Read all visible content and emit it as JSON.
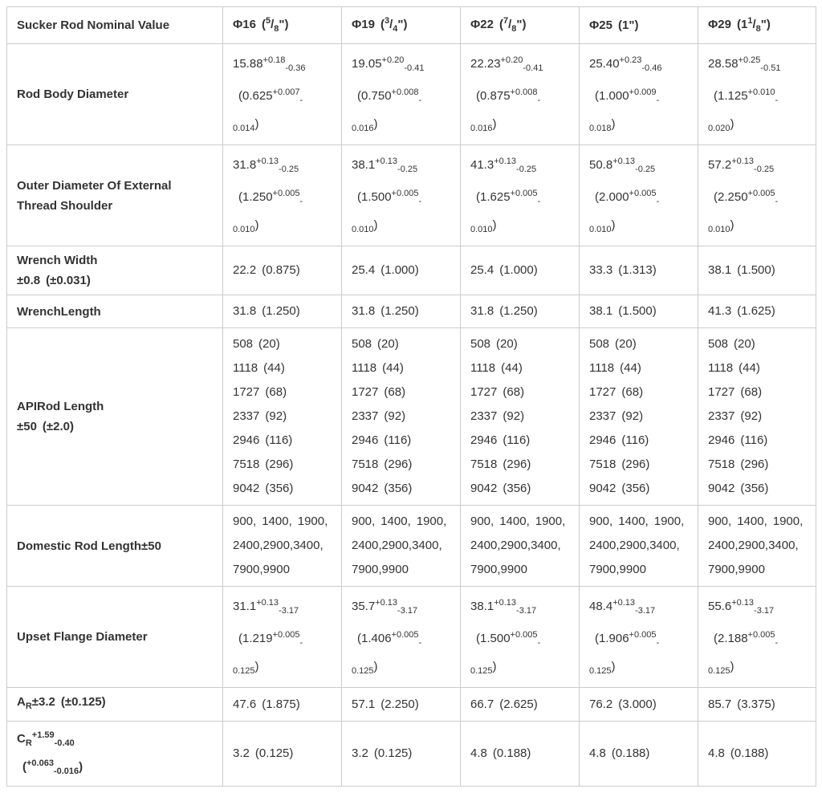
{
  "colors": {
    "border-color": "#cccccc",
    "text-color": "#333333",
    "bg-color": "#ffffff"
  },
  "table": {
    "columns": [
      "Sucker Rod Nominal Value",
      "Φ16（^{5}/_{8}\"）",
      "Φ19（^{3}/_{4}\"）",
      "Φ22（^{7}/_{8}\"）",
      "Φ25（1\"）",
      "Φ29（1^{1}/_{8}\"）"
    ],
    "rows": [
      {
        "label": "Rod Body Diameter",
        "cells": [
          "15.88^{+0.18}_{-0.36}\n（0.625^{+0.007}_{-0.014}）",
          "19.05^{+0.20}_{-0.41}\n（0.750^{+0.008}_{-0.016}）",
          "22.23^{+0.20}_{-0.41}\n（0.875^{+0.008}_{-0.016}）",
          "25.40^{+0.23}_{-0.46}\n（1.000^{+0.009}_{-0.018}）",
          "28.58^{+0.25}_{-0.51}\n（1.125^{+0.010}_{-0.020}）"
        ]
      },
      {
        "label": "Outer Diameter Of External Thread Shoulder",
        "cells": [
          "31.8^{+0.13}_{-0.25}\n（1.250^{+0.005}_{-0.010}）",
          "38.1^{+0.13}_{-0.25}\n（1.500^{+0.005}_{-0.010}）",
          "41.3^{+0.13}_{-0.25}\n（1.625^{+0.005}_{-0.010}）",
          "50.8^{+0.13}_{-0.25}\n（2.000^{+0.005}_{-0.010}）",
          "57.2^{+0.13}_{-0.25}\n（2.250^{+0.005}_{-0.010}）"
        ]
      },
      {
        "label": "Wrench Width\n±0.8（±0.031）",
        "cells": [
          "22.2（0.875）",
          "25.4（1.000）",
          "25.4（1.000）",
          "33.3（1.313）",
          "38.1（1.500）"
        ]
      },
      {
        "label": "WrenchLength",
        "cells": [
          "31.8（1.250）",
          "31.8（1.250）",
          "31.8（1.250）",
          "38.1（1.500）",
          "41.3（1.625）"
        ]
      },
      {
        "label": "APIRod Length\n±50（±2.0）",
        "cells": [
          "508（20）\n1118（44）\n1727（68）\n2337（92）\n2946（116）\n7518（296）\n9042（356）",
          "508（20）\n1118（44）\n1727（68）\n2337（92）\n2946（116）\n7518（296）\n9042（356）",
          "508（20）\n1118（44）\n1727（68）\n2337（92）\n2946（116）\n7518（296）\n9042（356）",
          "508（20）\n1118（44）\n1727（68）\n2337（92）\n2946（116）\n7518（296）\n9042（356）",
          "508（20）\n1118（44）\n1727（68）\n2337（92）\n2946（116）\n7518（296）\n9042（356）"
        ]
      },
      {
        "label": "Domestic Rod Length±50",
        "cells": [
          "900，1400，1900,\n2400,2900,3400,\n7900,9900",
          "900，1400，1900,\n2400,2900,3400,\n7900,9900",
          "900，1400，1900,\n2400,2900,3400,\n7900,9900",
          "900，1400，1900,\n2400,2900,3400,\n7900,9900",
          "900，1400，1900,\n2400,2900,3400,\n7900,9900"
        ]
      },
      {
        "label": "Upset Flange Diameter",
        "cells": [
          "31.1^{+0.13}_{-3.17}\n（1.219^{+0.005}_{-0.125}）",
          "35.7^{+0.13}_{-3.17}\n（1.406^{+0.005}_{-0.125}）",
          "38.1^{+0.13}_{-3.17}\n（1.500^{+0.005}_{-0.125}）",
          "48.4^{+0.13}_{-3.17}\n（1.906^{+0.005}_{-0.125}）",
          "55.6^{+0.13}_{-3.17}\n（2.188^{+0.005}_{-0.125}）"
        ]
      },
      {
        "label": "A_{R}±3.2（±0.125）",
        "cells": [
          "47.6（1.875）",
          "57.1（2.250）",
          "66.7（2.625）",
          "76.2（3.000）",
          "85.7（3.375）"
        ]
      },
      {
        "label": "C_{R}^{+1.59}_{-0.40}\n（^{+0.063}_{-0.016}）",
        "cells": [
          "3.2（0.125）",
          "3.2（0.125）",
          "4.8（0.188）",
          "4.8（0.188）",
          "4.8（0.188）"
        ]
      }
    ]
  }
}
